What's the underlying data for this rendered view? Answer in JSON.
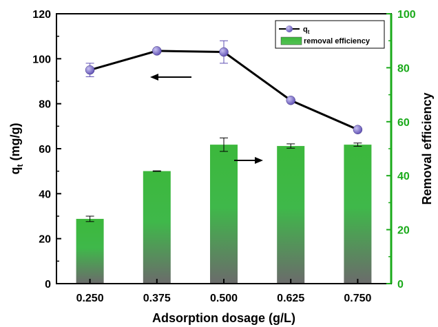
{
  "chart_data": {
    "type": "bar+line",
    "categories": [
      "0.250",
      "0.375",
      "0.500",
      "0.625",
      "0.750"
    ],
    "xlabel": "Adsorption dosage (g/L)",
    "ylabel_left_main": "q",
    "ylabel_left_sub": "t",
    "ylabel_left_unit": " (mg/g)",
    "ylabel_right": "Removal efficiency",
    "ylim_left": [
      0,
      120
    ],
    "yticks_left": [
      "0",
      "20",
      "40",
      "60",
      "80",
      "100",
      "120"
    ],
    "ylim_right": [
      0,
      100
    ],
    "yticks_right": [
      "0",
      "20",
      "40",
      "60",
      "80",
      "100"
    ],
    "grid": false,
    "legend_position": "top-right",
    "series": [
      {
        "name_main": "q",
        "name_sub": "t",
        "kind": "line",
        "axis": "left",
        "values": [
          95,
          103.5,
          103,
          81.5,
          68.5
        ],
        "errors": [
          3,
          0.5,
          5,
          0.5,
          0.5
        ],
        "color": "#000000",
        "marker_color": "#7b6cc9"
      },
      {
        "name": "removal efficiency",
        "kind": "bar",
        "axis": "right",
        "values": [
          24,
          41.7,
          51.5,
          51,
          51.5
        ],
        "errors": [
          1.0,
          0.1,
          2.5,
          0.8,
          0.6
        ],
        "color_top": "#3cb83c",
        "color_bottom": "#6b6b6b"
      }
    ],
    "annotations": [
      {
        "type": "arrow",
        "direction": "left",
        "points_to": "left axis"
      },
      {
        "type": "arrow",
        "direction": "right",
        "points_to": "right axis"
      }
    ],
    "colors": {
      "left_axis": "#000000",
      "right_axis": "#1aaa1a"
    }
  }
}
